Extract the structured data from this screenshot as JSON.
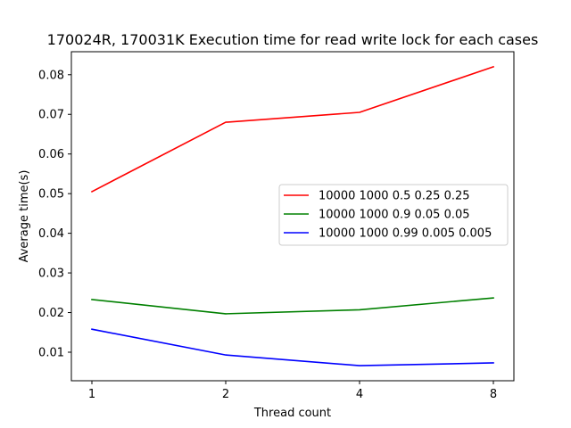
{
  "chart_data": {
    "type": "line",
    "title": "170024R, 170031K Execution time for read write lock for each cases",
    "xlabel": "Thread count",
    "ylabel": "Average time(s)",
    "categories": [
      "1",
      "2",
      "4",
      "8"
    ],
    "y_ticks": [
      "0.01",
      "0.02",
      "0.03",
      "0.04",
      "0.05",
      "0.06",
      "0.07",
      "0.08"
    ],
    "ylim": [
      0.0028,
      0.0858
    ],
    "grid": false,
    "legend_position": "center-right",
    "series": [
      {
        "name": "10000 1000 0.5 0.25 0.25",
        "color": "#ff0000",
        "values": [
          0.0505,
          0.068,
          0.0705,
          0.082
        ]
      },
      {
        "name": "10000 1000 0.9 0.05 0.05",
        "color": "#008000",
        "values": [
          0.0233,
          0.0197,
          0.0207,
          0.0237
        ]
      },
      {
        "name": "10000 1000 0.99 0.005 0.005",
        "color": "#0000ff",
        "values": [
          0.0158,
          0.0093,
          0.0066,
          0.0073
        ]
      }
    ]
  }
}
